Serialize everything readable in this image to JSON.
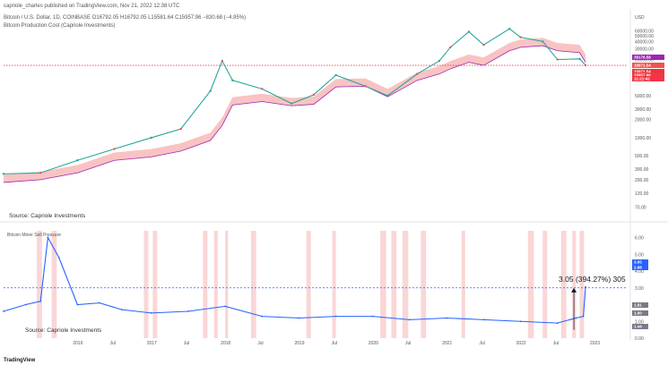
{
  "header": {
    "line1": "capriole_charles published on TradingView.com, Nov 21, 2022 12:38 UTC",
    "line2": "Bitcoin / U.S. Dollar, 1D, COINBASE  O16792.05  H16792.05  L15581.64  C15957.96  −830.68 (−4.95%)",
    "line3": "Bitcoin Production Cost (Capriole Investments)"
  },
  "sources": {
    "top": "Source: Capriole Investments",
    "bottom": "Source: Capriole Investments"
  },
  "logo": "TradingView",
  "chart_data": [
    {
      "type": "line",
      "title": "Bitcoin / U.S. Dollar, 1D, COINBASE",
      "scale": "log",
      "currency": "USD",
      "y_ticks": [
        "60000.00",
        "50000.00",
        "40000.00",
        "30000.00",
        "20000.00",
        "10000.00",
        "5000.00",
        "3000.00",
        "2000.00",
        "1000.00",
        "500.00",
        "300.00",
        "200.00",
        "120.00",
        "70.00"
      ],
      "x": [
        2015.0,
        2015.5,
        2016.0,
        2016.5,
        2017.0,
        2017.4,
        2017.8,
        2017.96,
        2018.1,
        2018.5,
        2018.9,
        2019.2,
        2019.5,
        2019.9,
        2020.2,
        2020.6,
        2020.9,
        2021.05,
        2021.3,
        2021.5,
        2021.85,
        2022.0,
        2022.3,
        2022.5,
        2022.8,
        2022.88
      ],
      "series": [
        {
          "name": "BTC/USD",
          "values": [
            250,
            260,
            420,
            650,
            1000,
            1400,
            6000,
            19000,
            9000,
            6500,
            3700,
            5200,
            11000,
            7200,
            5000,
            11500,
            19000,
            32000,
            58000,
            35000,
            65000,
            47000,
            40000,
            20000,
            20500,
            16000
          ]
        },
        {
          "name": "Production Cost",
          "values": [
            180,
            200,
            260,
            420,
            480,
            600,
            900,
            1600,
            3500,
            4000,
            3400,
            3600,
            7000,
            7200,
            4800,
            9000,
            11500,
            14000,
            18000,
            16000,
            28000,
            32000,
            34000,
            28000,
            26000,
            18000
          ]
        }
      ],
      "price_tags": [
        {
          "label": "38176.58",
          "color": "#9c27b0"
        },
        {
          "label": "16971.54",
          "color": "#ef5350"
        },
        {
          "label": "15971.54",
          "color": "#e53935"
        },
        {
          "label": "15957.96",
          "color": "#f23645"
        },
        {
          "label": "11:21:42",
          "color": "#f23645"
        }
      ]
    },
    {
      "type": "line",
      "title": "Bitcoin Miner Sell Pressure",
      "y_ticks": [
        "6.00",
        "5.00",
        "4.00",
        "3.00",
        "2.00",
        "1.00",
        "0.00"
      ],
      "x_labels": [
        "2016",
        "Jul",
        "2017",
        "Jul",
        "2018",
        "Jul",
        "2019",
        "Jul",
        "2020",
        "Jul",
        "2021",
        "Jul",
        "2022",
        "Jul",
        "2023",
        "Jul"
      ],
      "x": [
        2015.0,
        2015.3,
        2015.5,
        2015.6,
        2015.75,
        2016.0,
        2016.3,
        2016.6,
        2017.0,
        2017.5,
        2018.0,
        2018.5,
        2019.0,
        2019.5,
        2020.0,
        2020.5,
        2021.0,
        2021.5,
        2022.0,
        2022.5,
        2022.75,
        2022.85,
        2022.88
      ],
      "series": [
        {
          "name": "Miner Sell Pressure",
          "values": [
            1.6,
            2.0,
            2.2,
            6.0,
            4.8,
            2.0,
            2.1,
            1.7,
            1.5,
            1.6,
            1.9,
            1.3,
            1.2,
            1.3,
            1.3,
            1.1,
            1.2,
            1.1,
            1.0,
            0.9,
            1.2,
            1.3,
            3.05
          ]
        }
      ],
      "threshold": 3.0,
      "annotation": "3.05 (394.27%) 305",
      "value_tags": [
        {
          "label": "3.05",
          "color": "#2962ff"
        },
        {
          "label": "2.98",
          "color": "#2962ff"
        },
        {
          "label": "1.81",
          "color": "#787b86"
        },
        {
          "label": "1.00",
          "color": "#787b86"
        },
        {
          "label": "1.44",
          "color": "#787b86"
        }
      ],
      "highlight_periods": [
        [
          2015.45,
          2015.52
        ],
        [
          2015.65,
          2015.72
        ],
        [
          2016.9,
          2016.96
        ],
        [
          2017.02,
          2017.08
        ],
        [
          2017.7,
          2017.76
        ],
        [
          2017.85,
          2017.9
        ],
        [
          2018.0,
          2018.04
        ],
        [
          2018.35,
          2018.42
        ],
        [
          2019.1,
          2019.16
        ],
        [
          2019.45,
          2019.5
        ],
        [
          2020.1,
          2020.18
        ],
        [
          2020.25,
          2020.32
        ],
        [
          2020.4,
          2020.48
        ],
        [
          2020.65,
          2020.72
        ],
        [
          2021.2,
          2021.25
        ],
        [
          2022.1,
          2022.18
        ],
        [
          2022.3,
          2022.36
        ],
        [
          2022.55,
          2022.62
        ],
        [
          2022.7,
          2022.75
        ],
        [
          2022.8,
          2022.86
        ]
      ]
    }
  ]
}
